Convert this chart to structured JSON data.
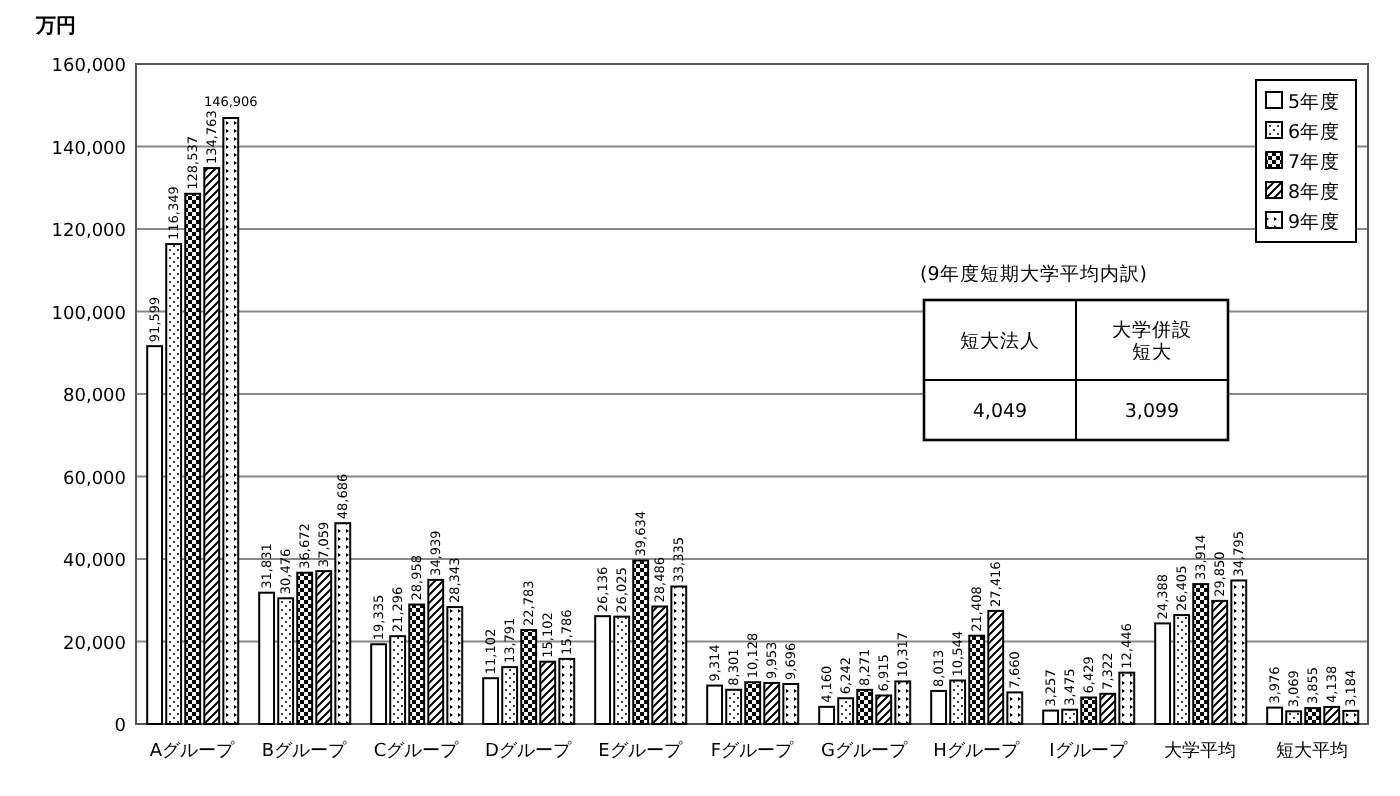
{
  "chart_data": {
    "type": "bar",
    "ylabel": "万円",
    "categories": [
      "Aグループ",
      "Bグループ",
      "Cグループ",
      "Dグループ",
      "Eグループ",
      "Fグループ",
      "Gグループ",
      "Hグループ",
      "Iグループ",
      "大学平均",
      "短大平均"
    ],
    "series": [
      {
        "name": "5年度",
        "values": [
          91599,
          31831,
          19335,
          11102,
          26136,
          9314,
          4160,
          8013,
          3257,
          24388,
          3976
        ],
        "value_labels": [
          "91,599",
          "31,831",
          "19,335",
          "11,102",
          "26,136",
          "9,314",
          "4,160",
          "8,013",
          "3,257",
          "24,388",
          "3,976"
        ]
      },
      {
        "name": "6年度",
        "values": [
          116349,
          30476,
          21296,
          13791,
          26025,
          8301,
          6242,
          10544,
          3475,
          26405,
          3069
        ],
        "value_labels": [
          "116,349",
          "30,476",
          "21,296",
          "13,791",
          "26,025",
          "8,301",
          "6,242",
          "10,544",
          "3,475",
          "26,405",
          "3,069"
        ]
      },
      {
        "name": "7年度",
        "values": [
          128537,
          36672,
          28958,
          22783,
          39634,
          10128,
          8271,
          21408,
          6429,
          33914,
          3855
        ],
        "value_labels": [
          "128,537",
          "36,672",
          "28,958",
          "22,783",
          "39,634",
          "10,128",
          "8,271",
          "21,408",
          "6,429",
          "33,914",
          "3,855"
        ]
      },
      {
        "name": "8年度",
        "values": [
          134763,
          37059,
          34939,
          15102,
          28486,
          9953,
          6915,
          27416,
          7322,
          29850,
          4138
        ],
        "value_labels": [
          "134,763",
          "37,059",
          "34,939",
          "15,102",
          "28,486",
          "9,953",
          "6,915",
          "27,416",
          "7,322",
          "29,850",
          "4,138"
        ]
      },
      {
        "name": "9年度",
        "values": [
          146906,
          48686,
          28343,
          15786,
          33335,
          9696,
          10317,
          7660,
          12446,
          34795,
          3184
        ],
        "value_labels": [
          "146,906",
          "48,686",
          "28,343",
          "15,786",
          "33,335",
          "9,696",
          "10,317",
          "7,660",
          "12,446",
          "34,795",
          "3,184"
        ]
      }
    ],
    "ylim": [
      0,
      160000
    ],
    "yticks": [
      {
        "value": 0,
        "label": "0"
      },
      {
        "value": 20000,
        "label": "20,000"
      },
      {
        "value": 40000,
        "label": "40,000"
      },
      {
        "value": 60000,
        "label": "60,000"
      },
      {
        "value": 80000,
        "label": "80,000"
      },
      {
        "value": 100000,
        "label": "100,000"
      },
      {
        "value": 120000,
        "label": "120,000"
      },
      {
        "value": 140000,
        "label": "140,000"
      },
      {
        "value": 160000,
        "label": "160,000"
      }
    ],
    "grid": "y",
    "legend": "top right",
    "annotations": [
      "(9年度短期大学平均内訳)",
      "短大法人",
      "大学併設短大",
      "4,049",
      "3,099"
    ]
  }
}
